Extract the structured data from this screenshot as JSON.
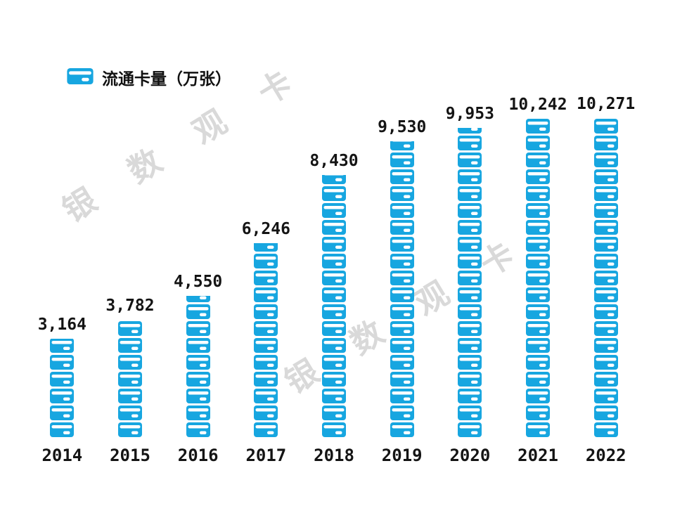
{
  "legend": {
    "label": "流通卡量（万张）"
  },
  "watermark": {
    "text": "银数观卡"
  },
  "chart_data": {
    "type": "bar",
    "subtype": "pictogram-stacked-cards",
    "title": "流通卡量（万张）",
    "categories": [
      "2014",
      "2015",
      "2016",
      "2017",
      "2018",
      "2019",
      "2020",
      "2021",
      "2022"
    ],
    "values": [
      3164,
      3782,
      4550,
      6246,
      8430,
      9530,
      9953,
      10242,
      10271
    ],
    "value_labels": [
      "3,164",
      "3,782",
      "4,550",
      "6,246",
      "8,430",
      "9,530",
      "9,953",
      "10,242",
      "10,271"
    ],
    "xlabel": "",
    "ylabel": "流通卡量（万张）",
    "ylim": [
      0,
      11000
    ],
    "grid": false,
    "axis_line": false,
    "legend_position": "top-left",
    "bar_color": "#17a6e0",
    "pictogram_icon": "card-icon",
    "label_color": "#141414",
    "watermark_color": "#d9d9d9"
  }
}
